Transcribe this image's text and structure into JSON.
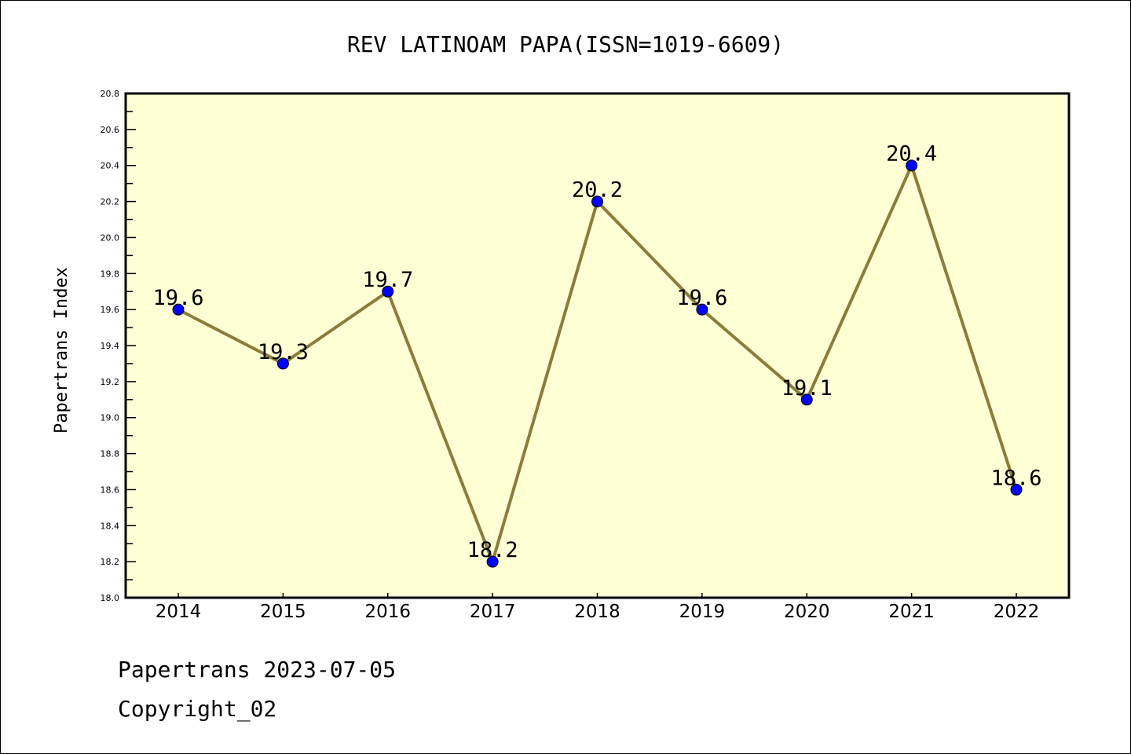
{
  "chart_data": {
    "type": "line",
    "title": "REV LATINOAM PAPA(ISSN=1019-6609)",
    "xlabel": "",
    "ylabel": "Papertrans Index",
    "x": [
      "2014",
      "2015",
      "2016",
      "2017",
      "2018",
      "2019",
      "2020",
      "2021",
      "2022"
    ],
    "series": [
      {
        "name": "Papertrans Index",
        "values": [
          19.6,
          19.3,
          19.7,
          18.2,
          20.2,
          19.6,
          19.1,
          20.4,
          18.6
        ]
      }
    ],
    "data_labels": [
      "19.6",
      "19.3",
      "19.7",
      "18.2",
      "20.2",
      "19.6",
      "19.1",
      "20.4",
      "18.6"
    ],
    "ylim": [
      18.0,
      20.8
    ],
    "yticks": [
      "18.0",
      "18.2",
      "18.4",
      "18.6",
      "18.8",
      "19.0",
      "19.2",
      "19.4",
      "19.6",
      "19.8",
      "20.0",
      "20.2",
      "20.4",
      "20.6",
      "20.8"
    ],
    "grid": false,
    "colors": {
      "background": "#ffffd5",
      "line": "#8b7d3a",
      "marker": "#0000ff"
    }
  },
  "footer": {
    "line1": "Papertrans 2023-07-05",
    "line2": "Copyright_02"
  }
}
